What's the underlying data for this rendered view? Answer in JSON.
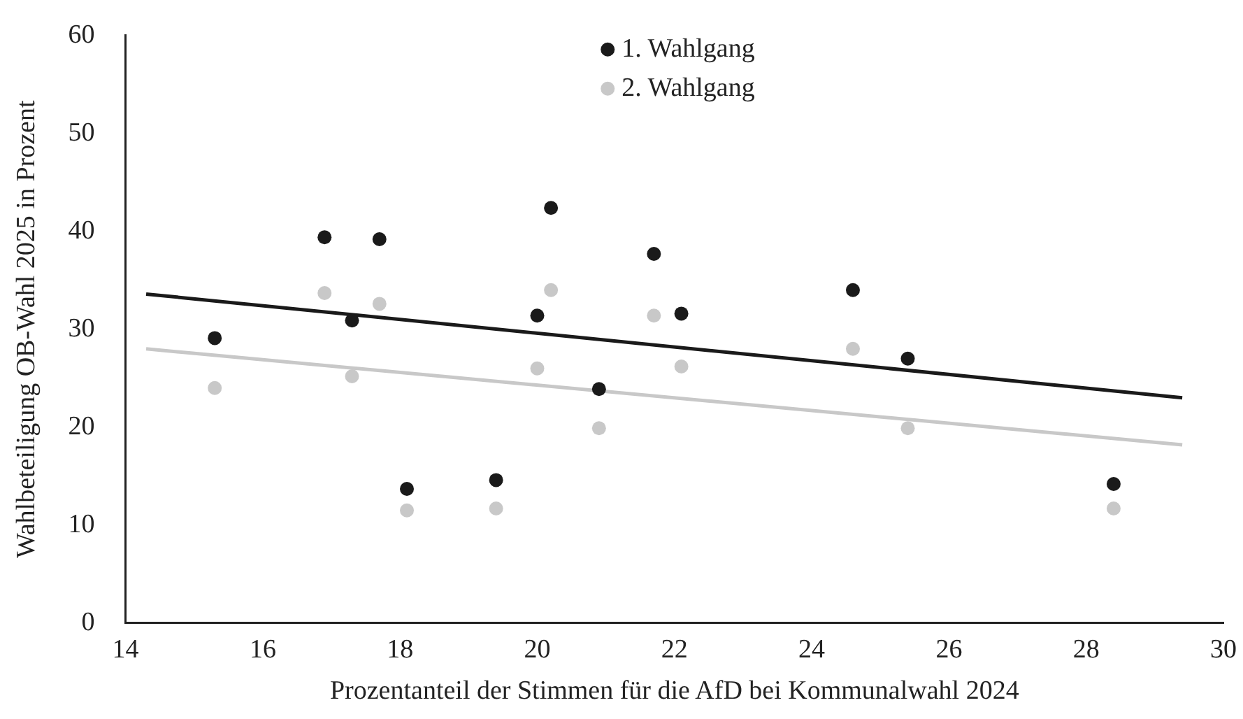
{
  "chart_data": {
    "type": "scatter",
    "xlabel": "Prozentanteil der Stimmen für die AfD bei Kommunalwahl 2024",
    "ylabel": "Wahlbeteiligung OB-Wahl 2025 in Prozent",
    "xlim": [
      14,
      30
    ],
    "xticks": [
      14,
      16,
      18,
      20,
      22,
      24,
      26,
      28,
      30
    ],
    "ylim": [
      0,
      60
    ],
    "yticks": [
      0,
      10,
      20,
      30,
      40,
      50,
      60
    ],
    "grid": false,
    "legend": "top",
    "marker": "circle",
    "series": [
      {
        "name": "1. Wahlgang",
        "color": "#1a1a1a",
        "x": [
          15.3,
          16.9,
          17.3,
          17.7,
          18.1,
          19.4,
          20.2,
          20.0,
          20.9,
          21.7,
          22.1,
          24.6,
          25.4,
          28.4
        ],
        "values": [
          29.1,
          39.4,
          30.9,
          39.2,
          13.7,
          14.6,
          42.4,
          31.4,
          23.9,
          37.7,
          31.6,
          34.0,
          27.0,
          14.2
        ]
      },
      {
        "name": "2. Wahlgang",
        "color": "#c8c8c8",
        "x": [
          15.3,
          16.9,
          17.3,
          17.7,
          18.1,
          19.4,
          20.2,
          20.0,
          20.9,
          21.7,
          22.1,
          24.6,
          25.4,
          28.4
        ],
        "values": [
          24.0,
          33.7,
          25.2,
          32.6,
          11.5,
          11.7,
          34.0,
          26.0,
          19.9,
          31.4,
          26.2,
          28.0,
          19.9,
          11.7
        ]
      },
      {
        "type": "line",
        "color": "#1a1a1a",
        "marker": "none",
        "x": [
          14.3,
          29.4
        ],
        "values": [
          33.6,
          23.0
        ]
      },
      {
        "type": "line",
        "color": "#c8c8c8",
        "marker": "none",
        "x": [
          14.3,
          29.4
        ],
        "values": [
          28.0,
          18.2
        ]
      }
    ]
  }
}
